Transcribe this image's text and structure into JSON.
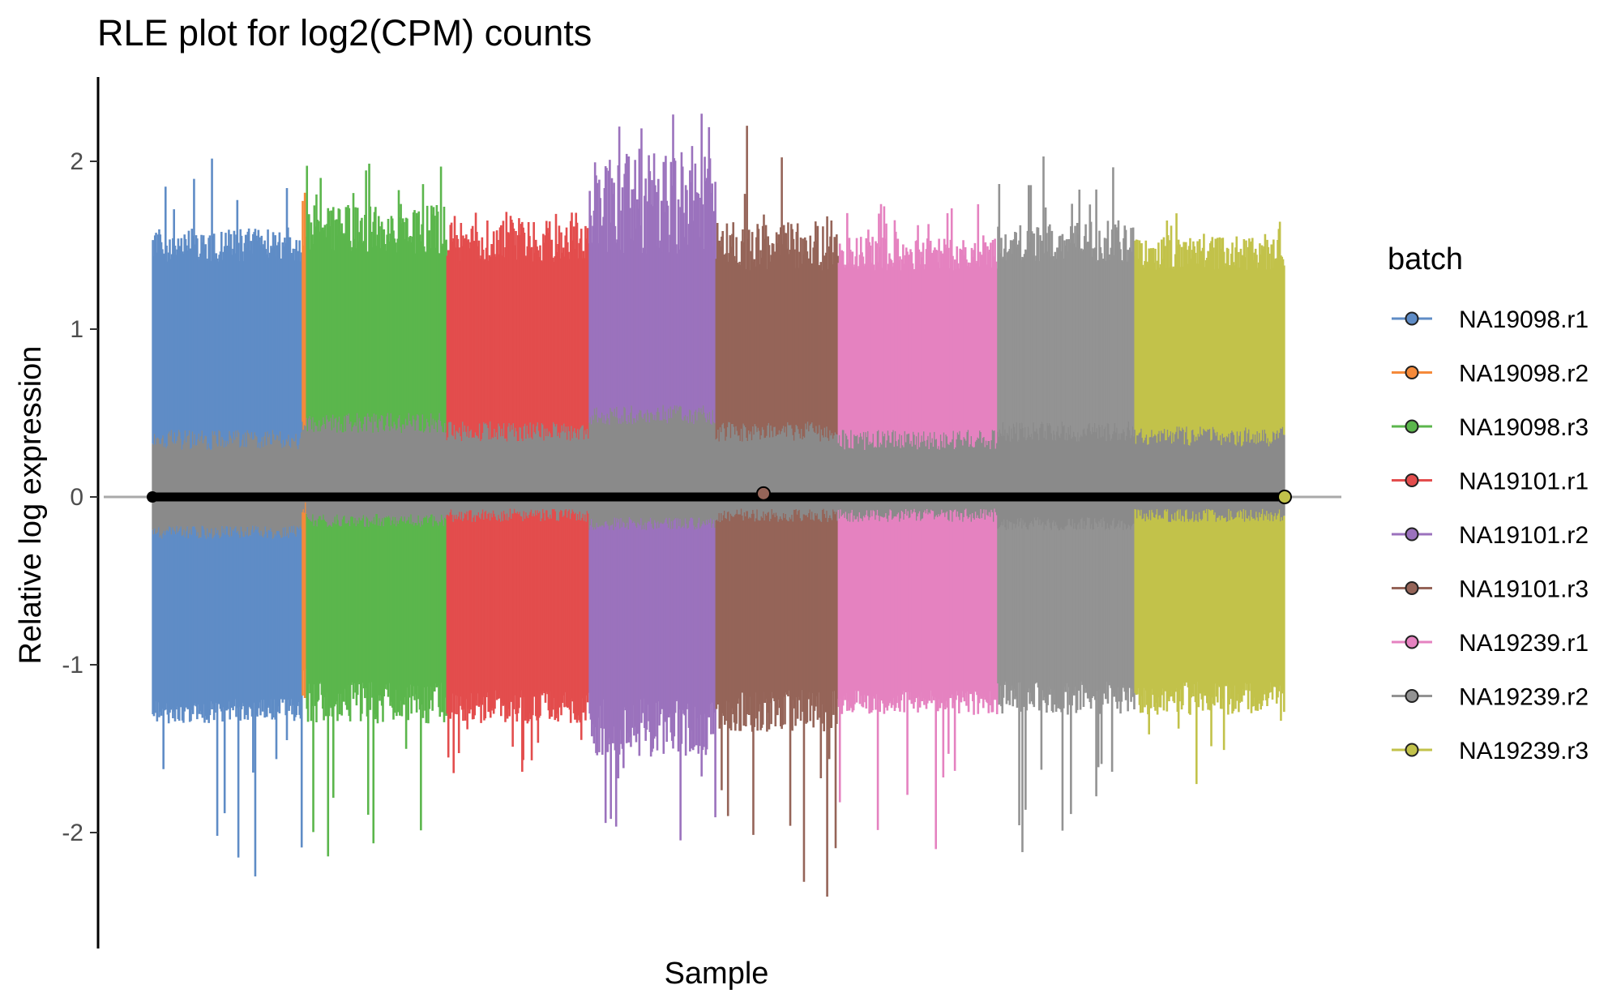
{
  "chart_data": {
    "type": "rle-boxplot",
    "title": "RLE plot for log2(CPM) counts",
    "xlabel": "Sample",
    "ylabel": "Relative log expression",
    "ylim": [
      -2.7,
      2.5
    ],
    "yticks": [
      -2,
      -1,
      0,
      1,
      2
    ],
    "ytick_labels": [
      "-2",
      "-1",
      "0",
      "1",
      "2"
    ],
    "hline": 0,
    "grid": false,
    "legend": {
      "title": "batch",
      "placement": "right",
      "entries": [
        {
          "name": "NA19098.r1",
          "color": "#5F8CC6"
        },
        {
          "name": "NA19098.r2",
          "color": "#F58A3A"
        },
        {
          "name": "NA19098.r3",
          "color": "#5BB64C"
        },
        {
          "name": "NA19101.r1",
          "color": "#E34D4D"
        },
        {
          "name": "NA19101.r2",
          "color": "#9B72BD"
        },
        {
          "name": "NA19101.r3",
          "color": "#956458"
        },
        {
          "name": "NA19239.r1",
          "color": "#E582C0"
        },
        {
          "name": "NA19239.r2",
          "color": "#939393"
        },
        {
          "name": "NA19239.r3",
          "color": "#C2C24A"
        }
      ]
    },
    "iqr_box_color": "#8A8A8A",
    "median_color": "#000000",
    "batches": [
      {
        "name": "NA19098.r1",
        "sample_count": 142,
        "whisker_hi": [
          1.4,
          1.6
        ],
        "whisker_lo": [
          -1.2,
          -1.35
        ],
        "iqr": [
          -0.25,
          0.4
        ],
        "outlier_hi_max": 2.05,
        "outlier_lo_min": -2.3,
        "median": 0.0
      },
      {
        "name": "NA19098.r2",
        "sample_count": 4,
        "whisker_hi": [
          1.4,
          1.95
        ],
        "whisker_lo": [
          -1.0,
          -1.3
        ],
        "iqr": [
          -0.1,
          0.45
        ],
        "outlier_hi_max": 1.97,
        "outlier_lo_min": -1.5,
        "median": 0.0
      },
      {
        "name": "NA19098.r3",
        "sample_count": 133,
        "whisker_hi": [
          1.45,
          1.75
        ],
        "whisker_lo": [
          -1.1,
          -1.35
        ],
        "iqr": [
          -0.18,
          0.5
        ],
        "outlier_hi_max": 2.0,
        "outlier_lo_min": -2.2,
        "median": 0.0
      },
      {
        "name": "NA19101.r1",
        "sample_count": 135,
        "whisker_hi": [
          1.4,
          1.65
        ],
        "whisker_lo": [
          -1.15,
          -1.35
        ],
        "iqr": [
          -0.15,
          0.45
        ],
        "outlier_hi_max": 1.7,
        "outlier_lo_min": -1.65,
        "median": 0.0
      },
      {
        "name": "NA19101.r2",
        "sample_count": 120,
        "whisker_hi": [
          1.45,
          2.05
        ],
        "whisker_lo": [
          -1.2,
          -1.55
        ],
        "iqr": [
          -0.2,
          0.55
        ],
        "outlier_hi_max": 2.3,
        "outlier_lo_min": -2.1,
        "median": 0.0
      },
      {
        "name": "NA19101.r3",
        "sample_count": 116,
        "whisker_hi": [
          1.35,
          1.65
        ],
        "whisker_lo": [
          -1.15,
          -1.4
        ],
        "iqr": [
          -0.15,
          0.45
        ],
        "outlier_hi_max": 2.22,
        "outlier_lo_min": -2.45,
        "median": 0.02
      },
      {
        "name": "NA19239.r1",
        "sample_count": 151,
        "whisker_hi": [
          1.35,
          1.55
        ],
        "whisker_lo": [
          -1.15,
          -1.3
        ],
        "iqr": [
          -0.15,
          0.4
        ],
        "outlier_hi_max": 1.75,
        "outlier_lo_min": -2.1,
        "median": 0.0
      },
      {
        "name": "NA19239.r2",
        "sample_count": 130,
        "whisker_hi": [
          1.4,
          1.65
        ],
        "whisker_lo": [
          -1.1,
          -1.3
        ],
        "iqr": [
          -0.2,
          0.45
        ],
        "outlier_hi_max": 2.05,
        "outlier_lo_min": -2.25,
        "median": 0.0
      },
      {
        "name": "NA19239.r3",
        "sample_count": 142,
        "whisker_hi": [
          1.35,
          1.55
        ],
        "whisker_lo": [
          -1.1,
          -1.3
        ],
        "iqr": [
          -0.15,
          0.42
        ],
        "outlier_hi_max": 1.7,
        "outlier_lo_min": -1.75,
        "median": 0.0
      }
    ]
  }
}
